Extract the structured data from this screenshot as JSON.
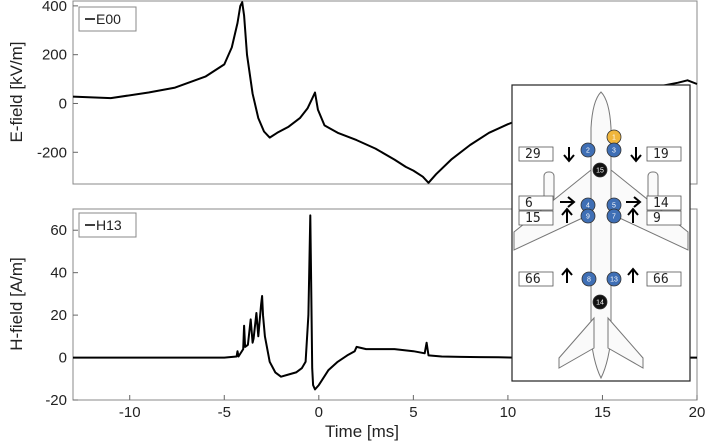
{
  "chart_data": [
    {
      "type": "line",
      "ylabel": "E-field [kV/m]",
      "xlim": [
        -13,
        20
      ],
      "ylim": [
        -330,
        420
      ],
      "yticks": [
        400,
        200,
        0,
        -200
      ],
      "grid": false,
      "legend_position": "top-left",
      "series": [
        {
          "name": "E00",
          "color": "#000000",
          "x": [
            -13,
            -11,
            -9,
            -7.6,
            -6,
            -5,
            -4.6,
            -4.3,
            -4.15,
            -4.05,
            -3.95,
            -3.8,
            -3.5,
            -3.2,
            -2.9,
            -2.6,
            -2.2,
            -1.6,
            -1.0,
            -0.6,
            -0.35,
            -0.2,
            -0.05,
            0.3,
            1.0,
            2.0,
            3.0,
            4.0,
            4.6,
            5.0,
            5.5,
            5.8,
            6.2,
            7.0,
            8.0,
            9.0,
            10.0,
            11.0,
            12.0,
            13.0,
            14.0,
            15.0,
            16.0,
            17.0,
            18.0,
            19.0,
            19.5,
            20
          ],
          "y": [
            28,
            22,
            45,
            65,
            110,
            160,
            230,
            330,
            400,
            415,
            360,
            200,
            40,
            -60,
            -115,
            -140,
            -120,
            -95,
            -60,
            -20,
            20,
            45,
            -25,
            -90,
            -120,
            -150,
            -185,
            -230,
            -260,
            -275,
            -300,
            -325,
            -290,
            -230,
            -170,
            -120,
            -85,
            -55,
            -30,
            -15,
            0,
            20,
            40,
            55,
            70,
            85,
            95,
            80
          ]
        }
      ]
    },
    {
      "type": "line",
      "xlabel": "Time [ms]",
      "ylabel": "H-field [A/m]",
      "xlim": [
        -13,
        20
      ],
      "ylim": [
        -20,
        70
      ],
      "xticks": [
        -10,
        -5,
        0,
        5,
        10,
        15,
        20
      ],
      "yticks": [
        60,
        40,
        20,
        0,
        -20
      ],
      "grid": false,
      "legend_position": "top-left",
      "series": [
        {
          "name": "H13",
          "color": "#000000",
          "x": [
            -13,
            -5,
            -4.35,
            -4.3,
            -4.25,
            -4.0,
            -3.95,
            -3.9,
            -3.75,
            -3.6,
            -3.5,
            -3.45,
            -3.3,
            -3.2,
            -3.05,
            -3.0,
            -2.95,
            -2.85,
            -2.6,
            -2.3,
            -2.0,
            -1.6,
            -1.2,
            -0.9,
            -0.7,
            -0.55,
            -0.45,
            -0.4,
            -0.35,
            -0.3,
            -0.2,
            0.0,
            0.5,
            1.0,
            1.5,
            1.9,
            2.0,
            2.5,
            3.0,
            4.0,
            5.0,
            5.6,
            5.7,
            5.8,
            6.5,
            7.5,
            8.5,
            9.5,
            10.5,
            11.5,
            12.5,
            20
          ],
          "y": [
            0,
            0,
            0.5,
            3,
            0.5,
            4,
            15,
            5,
            6,
            18,
            7,
            9,
            21,
            10,
            25,
            29,
            20,
            10,
            -2,
            -7,
            -9,
            -8,
            -7,
            -5,
            -2,
            20,
            67,
            30,
            -5,
            -13,
            -15,
            -13,
            -6,
            -2,
            1,
            3,
            5,
            4,
            4,
            4,
            3,
            2,
            7,
            1,
            0.5,
            0.3,
            0.2,
            0.1,
            0,
            0,
            0,
            0
          ]
        }
      ]
    }
  ],
  "inset": {
    "numbers": {
      "left_top": "29",
      "right_top": "19",
      "left_mid1": "6",
      "right_mid1": "14",
      "left_mid2": "15",
      "right_mid2": "9",
      "left_bottom": "66",
      "right_bottom": "66"
    },
    "sensors": [
      {
        "label": "1",
        "color": "#f0b63c"
      },
      {
        "label": "2",
        "color": "#3f6fb5"
      },
      {
        "label": "3",
        "color": "#3f6fb5"
      },
      {
        "label": "15",
        "color": "#111111"
      },
      {
        "label": "4",
        "color": "#3f6fb5"
      },
      {
        "label": "5",
        "color": "#3f6fb5"
      },
      {
        "label": "9",
        "color": "#3f6fb5"
      },
      {
        "label": "7",
        "color": "#3f6fb5"
      },
      {
        "label": "8",
        "color": "#3f6fb5"
      },
      {
        "label": "13",
        "color": "#3f6fb5"
      },
      {
        "label": "14",
        "color": "#111111"
      }
    ],
    "arrow_icons": [
      "arrow-down-icon",
      "arrow-down-icon",
      "arrow-right-icon",
      "arrow-right-icon",
      "arrow-up-icon",
      "arrow-up-icon",
      "arrow-up-icon",
      "arrow-up-icon"
    ]
  }
}
